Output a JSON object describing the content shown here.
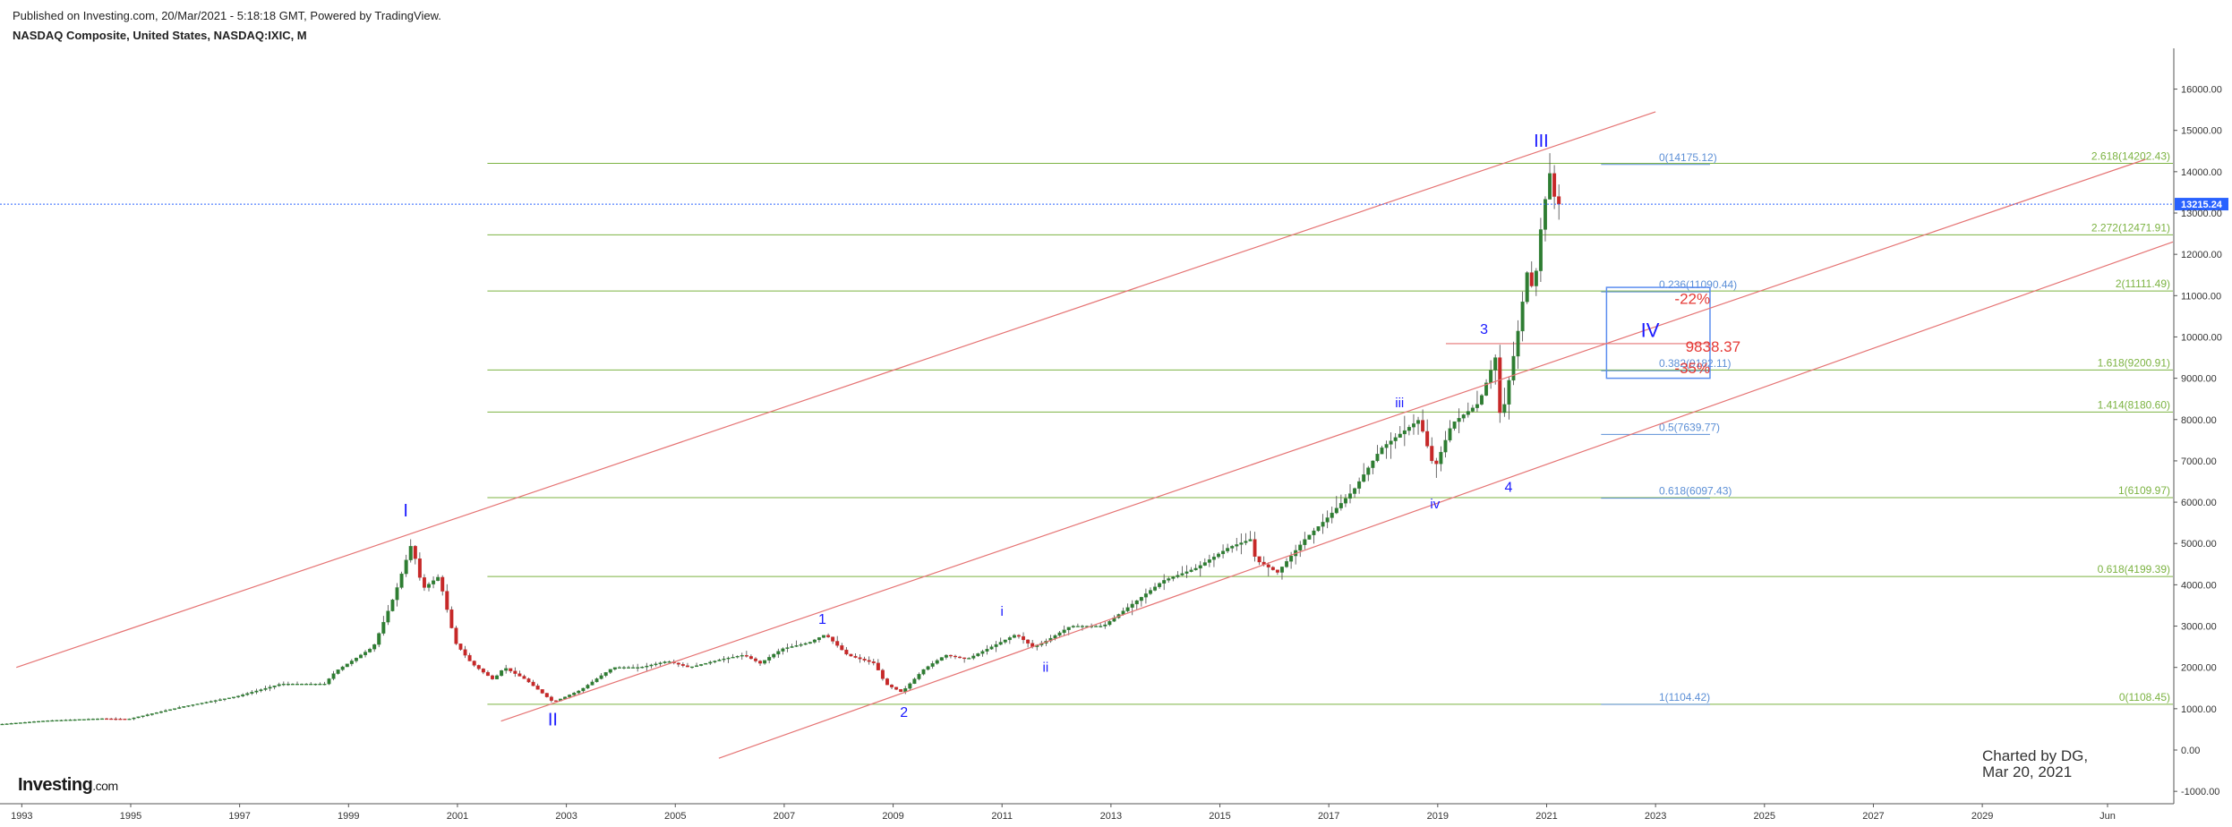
{
  "header": {
    "published": "Published on Investing.com, 20/Mar/2021 - 5:18:18 GMT, Powered by TradingView.",
    "symbol": "NASDAQ Composite, United States, NASDAQ:IXIC, M"
  },
  "logo": {
    "brand": "Investing",
    "domain": ".com"
  },
  "credit": {
    "line1": "Charted by DG,",
    "line2": "Mar 20, 2021"
  },
  "colors": {
    "background": "#ffffff",
    "up_candle": "#2e7d32",
    "down_candle": "#c62828",
    "channel": "#e57373",
    "fib_ext": "#7cb342",
    "fib_retr": "#5c8fd6",
    "wave_label": "#1a1aff",
    "annotation_red": "#e53935",
    "price_line": "#2962ff"
  },
  "chart_data": {
    "type": "candlestick",
    "title": "NASDAQ Composite, United States, NASDAQ:IXIC, M",
    "interval": "Monthly",
    "y_axis": {
      "side": "right",
      "range": [
        -1300,
        16900
      ],
      "ticks": [
        "16000.00",
        "15000.00",
        "14000.00",
        "13000.00",
        "12000.00",
        "11000.00",
        "10000.00",
        "9000.00",
        "8000.00",
        "7000.00",
        "6000.00",
        "5000.00",
        "4000.00",
        "3000.00",
        "2000.00",
        "1000.00",
        "0.00",
        "-1000.00"
      ]
    },
    "x_axis": {
      "range": [
        1992.6,
        2032.5
      ],
      "ticks": [
        "1993",
        "1995",
        "1997",
        "1999",
        "2001",
        "2003",
        "2005",
        "2007",
        "2009",
        "2011",
        "2013",
        "2015",
        "2017",
        "2019",
        "2021",
        "2023",
        "2025",
        "2027",
        "2029",
        "Jun"
      ]
    },
    "current_price": {
      "value": 13215.24,
      "label": "13215.24"
    },
    "price_path": [
      [
        1992.6,
        620
      ],
      [
        1993.5,
        710
      ],
      [
        1994.5,
        760
      ],
      [
        1995.0,
        750
      ],
      [
        1996.0,
        1050
      ],
      [
        1997.0,
        1300
      ],
      [
        1997.8,
        1600
      ],
      [
        1998.6,
        1600
      ],
      [
        1998.8,
        1900
      ],
      [
        1999.5,
        2500
      ],
      [
        1999.9,
        3800
      ],
      [
        2000.2,
        5000
      ],
      [
        2000.4,
        3900
      ],
      [
        2000.7,
        4200
      ],
      [
        2001.0,
        2600
      ],
      [
        2001.3,
        2100
      ],
      [
        2001.7,
        1700
      ],
      [
        2001.9,
        2000
      ],
      [
        2002.3,
        1700
      ],
      [
        2002.8,
        1160
      ],
      [
        2003.3,
        1450
      ],
      [
        2003.9,
        2000
      ],
      [
        2004.4,
        2000
      ],
      [
        2004.9,
        2150
      ],
      [
        2005.3,
        2000
      ],
      [
        2005.9,
        2200
      ],
      [
        2006.3,
        2300
      ],
      [
        2006.6,
        2100
      ],
      [
        2007.0,
        2450
      ],
      [
        2007.5,
        2600
      ],
      [
        2007.8,
        2800
      ],
      [
        2008.2,
        2300
      ],
      [
        2008.7,
        2100
      ],
      [
        2008.9,
        1600
      ],
      [
        2009.2,
        1400
      ],
      [
        2009.6,
        1950
      ],
      [
        2010.0,
        2300
      ],
      [
        2010.4,
        2200
      ],
      [
        2010.7,
        2400
      ],
      [
        2011.3,
        2800
      ],
      [
        2011.6,
        2500
      ],
      [
        2011.8,
        2600
      ],
      [
        2012.3,
        3000
      ],
      [
        2012.9,
        3000
      ],
      [
        2013.5,
        3600
      ],
      [
        2014.0,
        4100
      ],
      [
        2014.6,
        4400
      ],
      [
        2015.2,
        4900
      ],
      [
        2015.6,
        5100
      ],
      [
        2015.7,
        4600
      ],
      [
        2016.1,
        4300
      ],
      [
        2016.6,
        5100
      ],
      [
        2017.0,
        5600
      ],
      [
        2017.5,
        6300
      ],
      [
        2018.0,
        7300
      ],
      [
        2018.7,
        8000
      ],
      [
        2018.98,
        6800
      ],
      [
        2019.3,
        7900
      ],
      [
        2019.8,
        8400
      ],
      [
        2020.1,
        9500
      ],
      [
        2020.2,
        7900
      ],
      [
        2020.5,
        10000
      ],
      [
        2020.7,
        11700
      ],
      [
        2020.8,
        11000
      ],
      [
        2020.95,
        12800
      ],
      [
        2021.05,
        13600
      ],
      [
        2021.12,
        14100
      ],
      [
        2021.2,
        13215
      ]
    ],
    "channel_lines": [
      {
        "name": "upper",
        "x1": 1992.9,
        "y1": 2000,
        "x2": 2023.0,
        "y2": 15450
      },
      {
        "name": "middle",
        "x1": 2001.8,
        "y1": 700,
        "x2": 2032.0,
        "y2": 14300
      },
      {
        "name": "lower",
        "x1": 2005.8,
        "y1": -200,
        "x2": 2032.5,
        "y2": 12300
      }
    ],
    "fib_extension": {
      "x_start": 2001.55,
      "x_end": 2032.5,
      "levels": [
        {
          "label": "2.618(14202.43)",
          "value": 14202.43
        },
        {
          "label": "2.272(12471.91)",
          "value": 12471.91
        },
        {
          "label": "2(11111.49)",
          "value": 11111.49
        },
        {
          "label": "1.618(9200.91)",
          "value": 9200.91
        },
        {
          "label": "1.414(8180.60)",
          "value": 8180.6
        },
        {
          "label": "1(6109.97)",
          "value": 6109.97
        },
        {
          "label": "0.618(4199.39)",
          "value": 4199.39
        },
        {
          "label": "0(1108.45)",
          "value": 1108.45
        }
      ]
    },
    "fib_retracement": {
      "x_start": 2022.0,
      "x_end": 2024.0,
      "levels": [
        {
          "label": "0(14175.12)",
          "value": 14175.12
        },
        {
          "label": "0.236(11090.44)",
          "value": 11090.44
        },
        {
          "label": "0.382(9182.11)",
          "value": 9182.11
        },
        {
          "label": "0.5(7639.77)",
          "value": 7639.77
        },
        {
          "label": "0.618(6097.43)",
          "value": 6097.43
        },
        {
          "label": "1(1104.42)",
          "value": 1104.42
        }
      ]
    },
    "wave_labels": [
      {
        "text": "I",
        "x": 2000.05,
        "y": 5650,
        "size": 20
      },
      {
        "text": "II",
        "x": 2002.75,
        "y": 600,
        "size": 20
      },
      {
        "text": "1",
        "x": 2007.7,
        "y": 3050,
        "size": 16
      },
      {
        "text": "2",
        "x": 2009.2,
        "y": 800,
        "size": 16
      },
      {
        "text": "i",
        "x": 2011.0,
        "y": 3250,
        "size": 15
      },
      {
        "text": "ii",
        "x": 2011.8,
        "y": 1900,
        "size": 15
      },
      {
        "text": "iii",
        "x": 2018.3,
        "y": 8300,
        "size": 15
      },
      {
        "text": "iv",
        "x": 2018.95,
        "y": 5850,
        "size": 15
      },
      {
        "text": "3",
        "x": 2019.85,
        "y": 10070,
        "size": 16
      },
      {
        "text": "4",
        "x": 2020.3,
        "y": 6250,
        "size": 16
      },
      {
        "text": "III",
        "x": 2020.9,
        "y": 14600,
        "size": 20
      },
      {
        "text": "IV",
        "x": 2022.9,
        "y": 10000,
        "size": 22
      }
    ],
    "annotations": [
      {
        "text": "9838.37",
        "x": 2023.55,
        "y": 9640,
        "color": "red"
      },
      {
        "text": "-22%",
        "x": 2023.35,
        "y": 10800,
        "color": "red"
      },
      {
        "text": "-35%",
        "x": 2023.35,
        "y": 9120,
        "color": "red"
      }
    ],
    "target_line": {
      "value": 9838.37,
      "x1": 2019.15,
      "x2": 2024.0
    },
    "target_box": {
      "x1": 2022.1,
      "x2": 2024.0,
      "y1": 9000,
      "y2": 11200
    }
  }
}
